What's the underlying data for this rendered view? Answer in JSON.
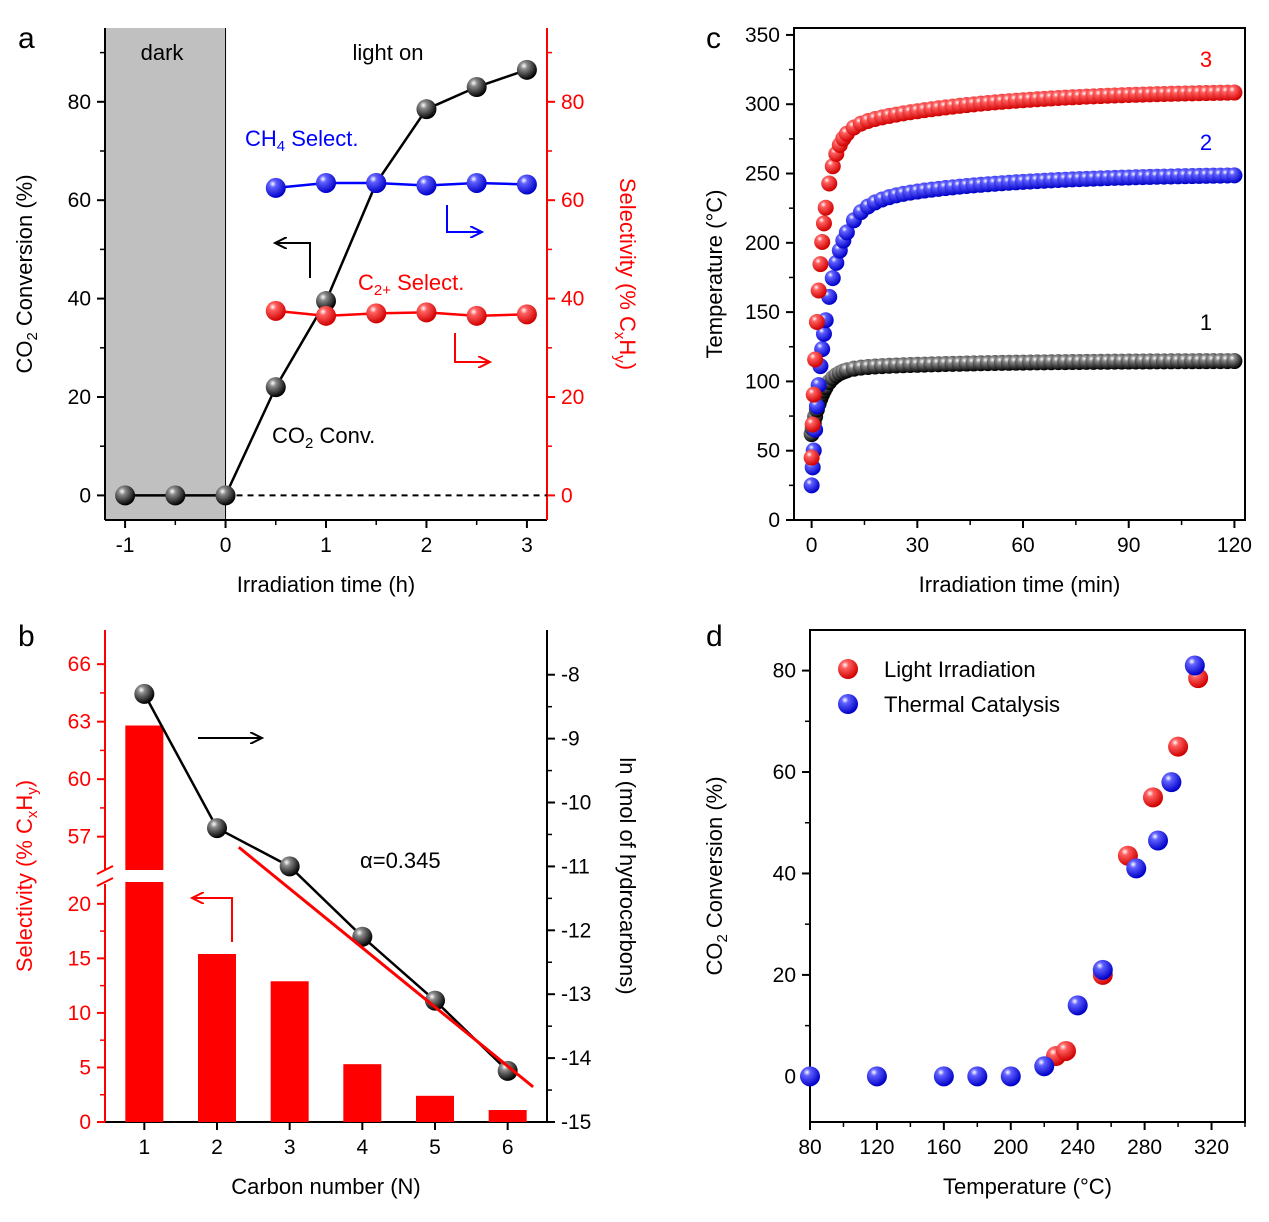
{
  "colors": {
    "black": "#000000",
    "red": "#ff0000",
    "blue": "#0000ff",
    "dark_fill": "#c0c0c0"
  },
  "chart_data": [
    {
      "panel": "a",
      "type": "line",
      "xlabel": "Irradiation time (h)",
      "ylabel": "CO2 Conversion (%)",
      "ylabel_right": "Selectivity (% CxHy)",
      "xlim": [
        -1.2,
        3.2
      ],
      "ylim": [
        -5,
        95
      ],
      "ylim_right": [
        -5,
        95
      ],
      "xticks": [
        "-1",
        "0",
        "1",
        "2",
        "3"
      ],
      "yticks": [
        "0",
        "20",
        "40",
        "60",
        "80"
      ],
      "yticks_right": [
        "0",
        "20",
        "40",
        "60",
        "80"
      ],
      "regions": [
        {
          "label": "dark",
          "from": -1.2,
          "to": 0
        },
        {
          "label": "light on",
          "from": 0,
          "to": 3.2
        }
      ],
      "series": [
        {
          "name": "CO2 Conv.",
          "axis": "left",
          "color": "black",
          "x": [
            -1,
            -0.5,
            0,
            0.5,
            1,
            1.5,
            2,
            2.5,
            3
          ],
          "y": [
            0,
            0,
            0,
            22,
            39.5,
            63.5,
            78.5,
            83,
            86.5
          ]
        },
        {
          "name": "CH4 Select.",
          "axis": "right",
          "color": "blue",
          "x": [
            0.5,
            1,
            1.5,
            2,
            2.5,
            3
          ],
          "y": [
            62.5,
            63.5,
            63.5,
            63,
            63.5,
            63.2
          ]
        },
        {
          "name": "C2+ Select.",
          "axis": "right",
          "color": "red",
          "x": [
            0.5,
            1,
            1.5,
            2,
            2.5,
            3
          ],
          "y": [
            37.5,
            36.5,
            37,
            37.2,
            36.5,
            36.8
          ]
        }
      ],
      "labels": {
        "dark": "dark",
        "light": "light on",
        "ch4": "CH4 Select.",
        "c2": "C2+ Select.",
        "co2": "CO2 Conv."
      }
    },
    {
      "panel": "b",
      "type": "bar",
      "xlabel": "Carbon number (N)",
      "ylabel": "Selectivity (% CxHy)",
      "ylabel_right": "ln (mol of hydrocarbons)",
      "categories": [
        "1",
        "2",
        "3",
        "4",
        "5",
        "6"
      ],
      "bar_values": [
        62.8,
        15.4,
        12.9,
        5.3,
        2.4,
        1.1
      ],
      "line_values": [
        -8.3,
        -10.4,
        -11.0,
        -12.1,
        -13.1,
        -14.2
      ],
      "ylim_break_lower": [
        0,
        22
      ],
      "ylim_break_upper": [
        55,
        67
      ],
      "ylim_right": [
        -15,
        -7.3
      ],
      "yticks_lower": [
        "0",
        "5",
        "10",
        "15",
        "20"
      ],
      "yticks_upper": [
        "57",
        "60",
        "63",
        "66"
      ],
      "yticks_right": [
        "-8",
        "-9",
        "-10",
        "-11",
        "-12",
        "-13",
        "-14",
        "-15"
      ],
      "fit": {
        "label": "α=0.345",
        "from": [
          2.3,
          -10.7
        ],
        "to": [
          6.35,
          -14.45
        ]
      }
    },
    {
      "panel": "c",
      "type": "scatter",
      "xlabel": "Irradiation time (min)",
      "ylabel": "Temperature (°C)",
      "xlim": [
        -5,
        123
      ],
      "ylim": [
        0,
        355
      ],
      "xticks": [
        "0",
        "30",
        "60",
        "90",
        "120"
      ],
      "yticks": [
        "0",
        "50",
        "100",
        "150",
        "200",
        "250",
        "300",
        "350"
      ],
      "series": [
        {
          "name": "1",
          "color": "black",
          "plateau": 115,
          "start": 62,
          "tau": 3.2
        },
        {
          "name": "2",
          "color": "blue",
          "plateau": 250,
          "start": 25,
          "tau": 4.5
        },
        {
          "name": "3",
          "color": "red",
          "plateau": 310,
          "start": 45,
          "tau": 2.8
        }
      ]
    },
    {
      "panel": "d",
      "type": "scatter",
      "xlabel": "Temperature (°C)",
      "ylabel": "CO2 Conversion (%)",
      "xlim": [
        80,
        340
      ],
      "ylim": [
        -9,
        88
      ],
      "xticks": [
        "80",
        "120",
        "160",
        "200",
        "240",
        "280",
        "320"
      ],
      "yticks": [
        "0",
        "20",
        "40",
        "60",
        "80"
      ],
      "legend_position": "top-left",
      "series": [
        {
          "name": "Light Irradiation",
          "color": "red",
          "x": [
            227,
            233,
            255,
            270,
            285,
            300,
            312
          ],
          "y": [
            4,
            5,
            20,
            43.5,
            55,
            65,
            78.5
          ]
        },
        {
          "name": "Thermal Catalysis",
          "color": "blue",
          "x": [
            80,
            120,
            160,
            180,
            200,
            220,
            240,
            255,
            275,
            288,
            296,
            310
          ],
          "y": [
            0,
            0,
            0,
            0,
            0,
            2,
            14,
            21,
            41,
            46.5,
            58,
            81
          ]
        }
      ]
    }
  ]
}
